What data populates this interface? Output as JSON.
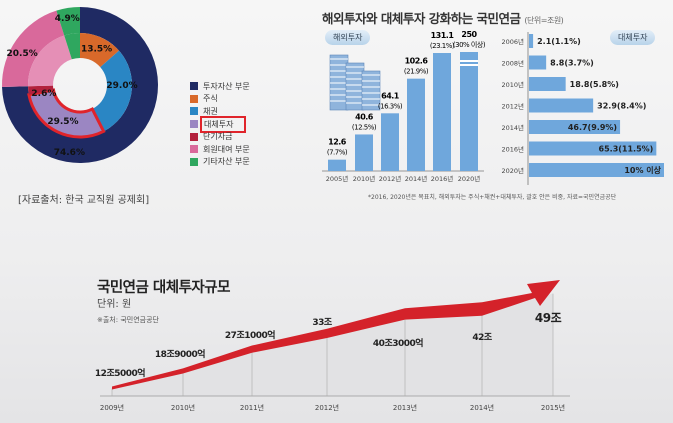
{
  "chart_data": [
    {
      "type": "pie",
      "title": "",
      "legend": [
        "투자자산 부문",
        "주식",
        "채권",
        "대체투자",
        "단기자금",
        "회원대여 부문",
        "기타자산 부문"
      ],
      "outer": [
        {
          "name": "투자자산 부문",
          "value": 74.6,
          "label": "74.6%",
          "color": "#1f2a63"
        },
        {
          "name": "회원대여 부문",
          "value": 20.5,
          "label": "20.5%",
          "color": "#d9699b"
        },
        {
          "name": "기타자산 부문",
          "value": 4.9,
          "label": "4.9%",
          "color": "#2fa75f"
        }
      ],
      "inner": [
        {
          "name": "주식",
          "value": 13.5,
          "label": "13.5%",
          "color": "#d8692a"
        },
        {
          "name": "채권",
          "value": 29.0,
          "label": "29.0%",
          "color": "#2a86c4"
        },
        {
          "name": "대체투자",
          "value": 29.5,
          "label": "29.5%",
          "color": "#9b86c2"
        },
        {
          "name": "단기자금",
          "value": 2.6,
          "label": "2.6%",
          "color": "#b3213d"
        },
        {
          "name": "회원대여 부문",
          "value": 20.5,
          "label": "",
          "color": "#e58fb6"
        },
        {
          "name": "기타자산 부문",
          "value": 4.9,
          "label": "",
          "color": "#2fa75f"
        }
      ],
      "legend_placement": "right",
      "highlight": "대체투자",
      "source": "[자료출처: 한국 교직원 공제회]"
    },
    {
      "type": "bar",
      "title": "해외투자와 대체투자 강화하는 국민연금",
      "unit": "(단위=조원)",
      "series_label": "해외투자",
      "categories": [
        "2005년",
        "2010년",
        "2012년",
        "2014년",
        "2016년",
        "2020년"
      ],
      "values": [
        12.6,
        40.6,
        64.1,
        102.6,
        131.1,
        250
      ],
      "labels": [
        "12.6",
        "40.6",
        "64.1",
        "102.6",
        "131.1",
        "250"
      ],
      "sublabels": [
        "(7.7%)",
        "(12.5%)",
        "(16.3%)",
        "(21.9%)",
        "(23.1%)",
        "(30% 이상)"
      ],
      "ylim": [
        0,
        250
      ]
    },
    {
      "type": "bar",
      "orientation": "horizontal",
      "series_label": "대체투자",
      "categories": [
        "2006년",
        "2008년",
        "2010년",
        "2012년",
        "2014년",
        "2016년",
        "2020년"
      ],
      "values": [
        2.1,
        8.8,
        18.8,
        32.9,
        46.7,
        65.3,
        null
      ],
      "labels": [
        "2.1(1.1%)",
        "8.8(3.7%)",
        "18.8(5.8%)",
        "32.9(8.4%)",
        "46.7(9.9%)",
        "65.3(11.5%)",
        "10% 이상"
      ],
      "note": "*2016, 2020년은 목표치, 해외투자는 주식+채권+대체투자, 괄호 안은 비중, 자료=국민연금공단"
    },
    {
      "type": "line",
      "title": "국민연금 대체투자규모",
      "unit": "단위: 원",
      "source": "※출처: 국민연금공단",
      "categories": [
        "2009년",
        "2010년",
        "2011년",
        "2012년",
        "2013년",
        "2014년",
        "2015년"
      ],
      "values": [
        12.5,
        18.9,
        27.1,
        33,
        40.3,
        42,
        49
      ],
      "labels": [
        "12조5000억",
        "18조9000억",
        "27조1000억",
        "33조",
        "40조3000억",
        "42조",
        "49조"
      ],
      "color": "#d4222a"
    }
  ]
}
